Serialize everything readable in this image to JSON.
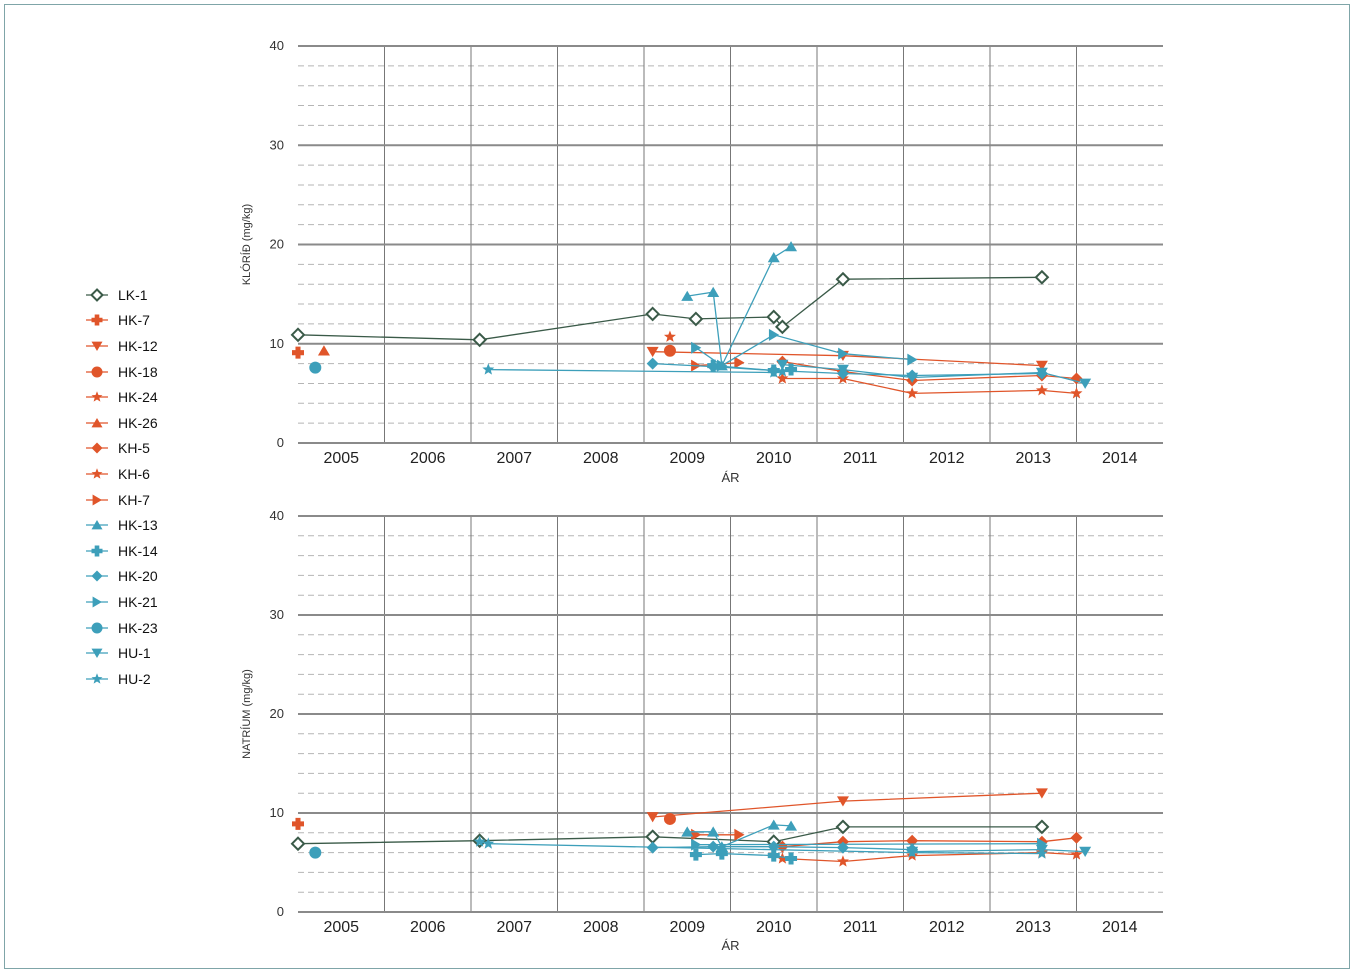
{
  "legend_title": "",
  "colors": {
    "dark": "#3a5a48",
    "orange": "#e0552a",
    "blue": "#3d9fba",
    "grid_major": "#8a8a8a",
    "grid_minor": "#b5b5b5"
  },
  "series_style": {
    "LK-1": {
      "color": "#3a5a48",
      "marker": "diamond-open"
    },
    "HK-7": {
      "color": "#e0552a",
      "marker": "plus"
    },
    "HK-12": {
      "color": "#e0552a",
      "marker": "triangle-down"
    },
    "HK-18": {
      "color": "#e0552a",
      "marker": "circle"
    },
    "HK-24": {
      "color": "#e0552a",
      "marker": "star"
    },
    "HK-26": {
      "color": "#e0552a",
      "marker": "triangle-up"
    },
    "KH-5": {
      "color": "#e0552a",
      "marker": "diamond"
    },
    "KH-6": {
      "color": "#e0552a",
      "marker": "star"
    },
    "KH-7": {
      "color": "#e0552a",
      "marker": "triangle-right"
    },
    "HK-13": {
      "color": "#3d9fba",
      "marker": "triangle-up"
    },
    "HK-14": {
      "color": "#3d9fba",
      "marker": "plus"
    },
    "HK-20": {
      "color": "#3d9fba",
      "marker": "diamond"
    },
    "HK-21": {
      "color": "#3d9fba",
      "marker": "triangle-right"
    },
    "HK-23": {
      "color": "#3d9fba",
      "marker": "circle"
    },
    "HU-1": {
      "color": "#3d9fba",
      "marker": "triangle-down"
    },
    "HU-2": {
      "color": "#3d9fba",
      "marker": "star"
    }
  },
  "chart_data": [
    {
      "type": "line",
      "title": "",
      "ylabel": "KLÓRÍÐ (mg/kg)",
      "xlabel": "ÁR",
      "x_tick_labels": [
        "2005",
        "2006",
        "2007",
        "2008",
        "2009",
        "2010",
        "2011",
        "2012",
        "2013",
        "2014"
      ],
      "xlim": [
        2005,
        2015
      ],
      "ylim": [
        0,
        40
      ],
      "y_ticks": [
        0,
        10,
        20,
        30,
        40
      ],
      "grid": true,
      "legend_position": "left",
      "series": [
        {
          "name": "LK-1",
          "points": [
            [
              2005.0,
              10.9
            ],
            [
              2007.1,
              10.4
            ],
            [
              2009.1,
              13.0
            ],
            [
              2009.6,
              12.5
            ],
            [
              2010.5,
              12.7
            ],
            [
              2010.6,
              11.7
            ],
            [
              2011.3,
              16.5
            ],
            [
              2013.6,
              16.7
            ]
          ]
        },
        {
          "name": "HK-7",
          "points": [
            [
              2005.0,
              9.1
            ]
          ]
        },
        {
          "name": "HK-12",
          "points": [
            [
              2009.1,
              9.2
            ],
            [
              2011.3,
              8.8
            ],
            [
              2013.6,
              7.8
            ]
          ]
        },
        {
          "name": "HK-18",
          "points": [
            [
              2009.3,
              9.3
            ]
          ]
        },
        {
          "name": "HK-24",
          "points": [
            [
              2009.3,
              10.7
            ]
          ]
        },
        {
          "name": "HK-26",
          "points": [
            [
              2005.3,
              9.3
            ]
          ]
        },
        {
          "name": "KH-5",
          "points": [
            [
              2010.6,
              8.2
            ],
            [
              2011.3,
              7.2
            ],
            [
              2012.1,
              6.3
            ],
            [
              2013.6,
              6.8
            ],
            [
              2014.0,
              6.5
            ]
          ]
        },
        {
          "name": "KH-6",
          "points": [
            [
              2010.6,
              6.5
            ],
            [
              2011.3,
              6.5
            ],
            [
              2012.1,
              5.0
            ],
            [
              2013.6,
              5.3
            ],
            [
              2014.0,
              5.0
            ]
          ]
        },
        {
          "name": "KH-7",
          "points": [
            [
              2009.6,
              7.8
            ],
            [
              2010.1,
              8.1
            ]
          ]
        },
        {
          "name": "HK-13",
          "points": [
            [
              2009.5,
              14.8
            ],
            [
              2009.8,
              15.2
            ],
            [
              2009.9,
              7.8
            ],
            [
              2010.5,
              18.7
            ],
            [
              2010.7,
              19.8
            ]
          ]
        },
        {
          "name": "HK-14",
          "points": [
            [
              2009.8,
              7.8
            ],
            [
              2010.5,
              7.3
            ],
            [
              2010.7,
              7.4
            ]
          ]
        },
        {
          "name": "HK-20",
          "points": [
            [
              2009.1,
              8.0
            ],
            [
              2009.8,
              7.7
            ],
            [
              2010.5,
              7.3
            ],
            [
              2011.3,
              7.0
            ],
            [
              2012.1,
              6.8
            ],
            [
              2013.6,
              7.0
            ]
          ]
        },
        {
          "name": "HK-21",
          "points": [
            [
              2009.6,
              9.6
            ],
            [
              2009.9,
              7.8
            ],
            [
              2010.5,
              10.9
            ],
            [
              2011.3,
              9.0
            ],
            [
              2012.1,
              8.4
            ]
          ]
        },
        {
          "name": "HK-23",
          "points": [
            [
              2005.2,
              7.6
            ]
          ]
        },
        {
          "name": "HU-1",
          "points": [
            [
              2010.6,
              7.9
            ],
            [
              2011.3,
              7.4
            ],
            [
              2012.1,
              6.6
            ],
            [
              2013.6,
              7.1
            ],
            [
              2014.1,
              6.0
            ]
          ]
        },
        {
          "name": "HU-2",
          "points": [
            [
              2007.2,
              7.4
            ],
            [
              2010.5,
              7.1
            ],
            [
              2010.6,
              7.2
            ]
          ]
        }
      ]
    },
    {
      "type": "line",
      "title": "",
      "ylabel": "NATRÍUM (mg/kg)",
      "xlabel": "ÁR",
      "x_tick_labels": [
        "2005",
        "2006",
        "2007",
        "2008",
        "2009",
        "2010",
        "2011",
        "2012",
        "2013",
        "2014"
      ],
      "xlim": [
        2005,
        2015
      ],
      "ylim": [
        0,
        40
      ],
      "y_ticks": [
        0,
        10,
        20,
        30,
        40
      ],
      "grid": true,
      "legend_position": "left",
      "series": [
        {
          "name": "LK-1",
          "points": [
            [
              2005.0,
              6.9
            ],
            [
              2007.1,
              7.2
            ],
            [
              2009.1,
              7.6
            ],
            [
              2010.5,
              7.1
            ],
            [
              2011.3,
              8.6
            ],
            [
              2013.6,
              8.6
            ]
          ]
        },
        {
          "name": "HK-7",
          "points": [
            [
              2005.0,
              8.9
            ]
          ]
        },
        {
          "name": "HK-12",
          "points": [
            [
              2009.1,
              9.6
            ],
            [
              2011.3,
              11.2
            ],
            [
              2013.6,
              12.0
            ]
          ]
        },
        {
          "name": "HK-18",
          "points": [
            [
              2009.3,
              9.4
            ]
          ]
        },
        {
          "name": "HK-24",
          "points": [
            [
              2010.6,
              5.4
            ],
            [
              2011.3,
              5.1
            ],
            [
              2012.1,
              5.7
            ],
            [
              2013.6,
              6.0
            ],
            [
              2014.0,
              5.8
            ]
          ]
        },
        {
          "name": "HK-26",
          "points": []
        },
        {
          "name": "KH-5",
          "points": [
            [
              2010.6,
              6.6
            ],
            [
              2011.3,
              7.1
            ],
            [
              2012.1,
              7.2
            ],
            [
              2013.6,
              7.1
            ],
            [
              2014.0,
              7.5
            ]
          ]
        },
        {
          "name": "KH-6",
          "points": []
        },
        {
          "name": "KH-7",
          "points": [
            [
              2009.6,
              7.8
            ],
            [
              2010.1,
              7.8
            ]
          ]
        },
        {
          "name": "HK-13",
          "points": [
            [
              2009.5,
              8.1
            ],
            [
              2009.8,
              8.1
            ],
            [
              2009.9,
              6.6
            ],
            [
              2010.5,
              8.8
            ],
            [
              2010.7,
              8.7
            ]
          ]
        },
        {
          "name": "HK-14",
          "points": [
            [
              2009.6,
              5.8
            ],
            [
              2009.9,
              5.9
            ],
            [
              2010.5,
              5.7
            ],
            [
              2010.7,
              5.4
            ]
          ]
        },
        {
          "name": "HK-20",
          "points": [
            [
              2009.1,
              6.5
            ],
            [
              2009.8,
              6.6
            ],
            [
              2010.5,
              6.6
            ],
            [
              2011.3,
              6.5
            ],
            [
              2012.1,
              6.3
            ]
          ]
        },
        {
          "name": "HK-21",
          "points": [
            [
              2009.6,
              6.8
            ],
            [
              2013.6,
              6.9
            ]
          ]
        },
        {
          "name": "HK-23",
          "points": [
            [
              2005.2,
              6.0
            ]
          ]
        },
        {
          "name": "HU-1",
          "points": [
            [
              2012.1,
              6.1
            ],
            [
              2013.6,
              6.3
            ],
            [
              2014.1,
              6.1
            ]
          ]
        },
        {
          "name": "HU-2",
          "points": [
            [
              2007.1,
              7.1
            ],
            [
              2007.2,
              6.9
            ],
            [
              2012.1,
              6.0
            ],
            [
              2013.6,
              5.9
            ]
          ]
        }
      ]
    }
  ]
}
